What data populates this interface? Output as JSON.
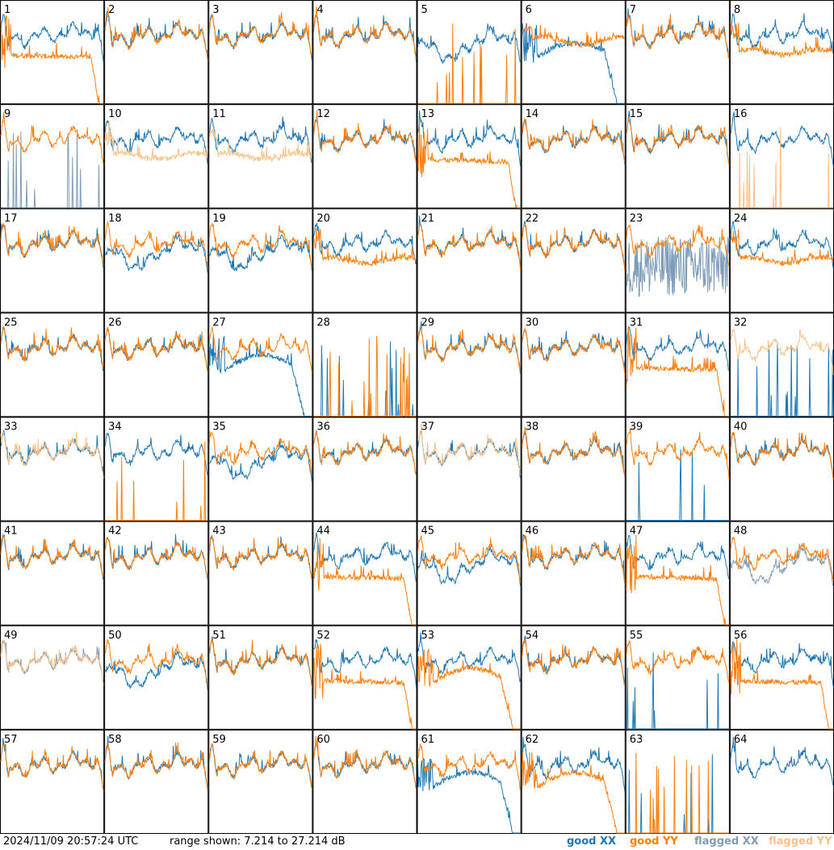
{
  "timestamp": "2024/11/09 20:57:24 UTC",
  "range_text": "range shown: 7.214 to 27.214 dB",
  "legend": {
    "good_xx": "good XX",
    "good_yy": "good YY",
    "flagged_xx": "flagged XX",
    "flagged_yy": "flagged YY"
  },
  "colors": {
    "good_xx": "#1f77b4",
    "good_yy": "#ff7f0e",
    "flagged_xx": "#7f9db9",
    "flagged_yy": "#fdc086"
  },
  "chart_data": {
    "type": "line",
    "grid": "8x8 small multiples",
    "ylim": [
      7.214,
      27.214
    ],
    "y_unit": "dB",
    "panels": [
      {
        "label": "1",
        "xx": "good",
        "yy": "good",
        "xx_shape": "normal",
        "yy_shape": "low_drop"
      },
      {
        "label": "2",
        "xx": "good",
        "yy": "good",
        "xx_shape": "normal",
        "yy_shape": "normal"
      },
      {
        "label": "3",
        "xx": "good",
        "yy": "good",
        "xx_shape": "normal",
        "yy_shape": "normal"
      },
      {
        "label": "4",
        "xx": "good",
        "yy": "good",
        "xx_shape": "normal",
        "yy_shape": "normal"
      },
      {
        "label": "5",
        "xx": "good",
        "yy": "good",
        "xx_shape": "dip",
        "yy_shape": "dead"
      },
      {
        "label": "6",
        "xx": "good",
        "yy": "good",
        "xx_shape": "dip_drop",
        "yy_shape": "high"
      },
      {
        "label": "7",
        "xx": "good",
        "yy": "good",
        "xx_shape": "normal",
        "yy_shape": "normal"
      },
      {
        "label": "8",
        "xx": "good",
        "yy": "good",
        "xx_shape": "normal",
        "yy_shape": "low_flat"
      },
      {
        "label": "9",
        "xx": "flagged",
        "yy": "good",
        "xx_shape": "dead",
        "yy_shape": "normal"
      },
      {
        "label": "10",
        "xx": "good",
        "yy": "flagged",
        "xx_shape": "normal",
        "yy_shape": "low_flat"
      },
      {
        "label": "11",
        "xx": "good",
        "yy": "flagged",
        "xx_shape": "normal",
        "yy_shape": "low_flat"
      },
      {
        "label": "12",
        "xx": "good",
        "yy": "good",
        "xx_shape": "normal",
        "yy_shape": "normal"
      },
      {
        "label": "13",
        "xx": "good",
        "yy": "good",
        "xx_shape": "normal",
        "yy_shape": "low_drop"
      },
      {
        "label": "14",
        "xx": "good",
        "yy": "good",
        "xx_shape": "normal",
        "yy_shape": "normal"
      },
      {
        "label": "15",
        "xx": "good",
        "yy": "good",
        "xx_shape": "normal",
        "yy_shape": "normal"
      },
      {
        "label": "16",
        "xx": "good",
        "yy": "flagged",
        "xx_shape": "normal",
        "yy_shape": "dead"
      },
      {
        "label": "17",
        "xx": "good",
        "yy": "good",
        "xx_shape": "normal",
        "yy_shape": "normal"
      },
      {
        "label": "18",
        "xx": "good",
        "yy": "good",
        "xx_shape": "dip",
        "yy_shape": "normal"
      },
      {
        "label": "19",
        "xx": "good",
        "yy": "good",
        "xx_shape": "dip",
        "yy_shape": "normal"
      },
      {
        "label": "20",
        "xx": "good",
        "yy": "good",
        "xx_shape": "normal",
        "yy_shape": "low_flat"
      },
      {
        "label": "21",
        "xx": "good",
        "yy": "good",
        "xx_shape": "normal",
        "yy_shape": "normal"
      },
      {
        "label": "22",
        "xx": "good",
        "yy": "good",
        "xx_shape": "normal",
        "yy_shape": "normal"
      },
      {
        "label": "23",
        "xx": "flagged",
        "yy": "good",
        "xx_shape": "noisy",
        "yy_shape": "normal"
      },
      {
        "label": "24",
        "xx": "good",
        "yy": "good",
        "xx_shape": "normal",
        "yy_shape": "low_flat"
      },
      {
        "label": "25",
        "xx": "good",
        "yy": "good",
        "xx_shape": "normal",
        "yy_shape": "normal"
      },
      {
        "label": "26",
        "xx": "good",
        "yy": "good",
        "xx_shape": "normal",
        "yy_shape": "normal"
      },
      {
        "label": "27",
        "xx": "good",
        "yy": "good",
        "xx_shape": "dip_drop",
        "yy_shape": "normal"
      },
      {
        "label": "28",
        "xx": "good",
        "yy": "good",
        "xx_shape": "dead",
        "yy_shape": "dead"
      },
      {
        "label": "29",
        "xx": "good",
        "yy": "good",
        "xx_shape": "normal",
        "yy_shape": "normal"
      },
      {
        "label": "30",
        "xx": "good",
        "yy": "good",
        "xx_shape": "normal",
        "yy_shape": "normal"
      },
      {
        "label": "31",
        "xx": "good",
        "yy": "good",
        "xx_shape": "normal",
        "yy_shape": "low_drop"
      },
      {
        "label": "32",
        "xx": "good",
        "yy": "flagged",
        "xx_shape": "dead",
        "yy_shape": "normal"
      },
      {
        "label": "33",
        "xx": "good",
        "yy": "flagged",
        "xx_shape": "normal",
        "yy_shape": "normal"
      },
      {
        "label": "34",
        "xx": "good",
        "yy": "good",
        "xx_shape": "normal",
        "yy_shape": "dead"
      },
      {
        "label": "35",
        "xx": "good",
        "yy": "good",
        "xx_shape": "dip",
        "yy_shape": "normal"
      },
      {
        "label": "36",
        "xx": "good",
        "yy": "good",
        "xx_shape": "normal",
        "yy_shape": "normal"
      },
      {
        "label": "37",
        "xx": "good",
        "yy": "flagged",
        "xx_shape": "normal",
        "yy_shape": "normal"
      },
      {
        "label": "38",
        "xx": "good",
        "yy": "good",
        "xx_shape": "normal",
        "yy_shape": "normal"
      },
      {
        "label": "39",
        "xx": "good",
        "yy": "good",
        "xx_shape": "dead",
        "yy_shape": "normal"
      },
      {
        "label": "40",
        "xx": "good",
        "yy": "good",
        "xx_shape": "normal",
        "yy_shape": "normal"
      },
      {
        "label": "41",
        "xx": "good",
        "yy": "good",
        "xx_shape": "normal",
        "yy_shape": "normal"
      },
      {
        "label": "42",
        "xx": "good",
        "yy": "good",
        "xx_shape": "normal",
        "yy_shape": "normal"
      },
      {
        "label": "43",
        "xx": "good",
        "yy": "good",
        "xx_shape": "normal",
        "yy_shape": "normal"
      },
      {
        "label": "44",
        "xx": "good",
        "yy": "good",
        "xx_shape": "normal",
        "yy_shape": "low_drop"
      },
      {
        "label": "45",
        "xx": "good",
        "yy": "good",
        "xx_shape": "dip",
        "yy_shape": "normal"
      },
      {
        "label": "46",
        "xx": "good",
        "yy": "good",
        "xx_shape": "normal",
        "yy_shape": "normal"
      },
      {
        "label": "47",
        "xx": "good",
        "yy": "good",
        "xx_shape": "normal",
        "yy_shape": "low_drop"
      },
      {
        "label": "48",
        "xx": "flagged",
        "yy": "good",
        "xx_shape": "dip",
        "yy_shape": "normal"
      },
      {
        "label": "49",
        "xx": "flagged",
        "yy": "flagged",
        "xx_shape": "normal",
        "yy_shape": "normal"
      },
      {
        "label": "50",
        "xx": "good",
        "yy": "good",
        "xx_shape": "dip",
        "yy_shape": "normal"
      },
      {
        "label": "51",
        "xx": "good",
        "yy": "good",
        "xx_shape": "normal",
        "yy_shape": "normal"
      },
      {
        "label": "52",
        "xx": "good",
        "yy": "good",
        "xx_shape": "normal",
        "yy_shape": "low_drop"
      },
      {
        "label": "53",
        "xx": "good",
        "yy": "good",
        "xx_shape": "normal",
        "yy_shape": "dip_drop"
      },
      {
        "label": "54",
        "xx": "good",
        "yy": "good",
        "xx_shape": "normal",
        "yy_shape": "normal"
      },
      {
        "label": "55",
        "xx": "good",
        "yy": "good",
        "xx_shape": "dead",
        "yy_shape": "normal"
      },
      {
        "label": "56",
        "xx": "good",
        "yy": "good",
        "xx_shape": "normal",
        "yy_shape": "low_drop"
      },
      {
        "label": "57",
        "xx": "good",
        "yy": "good",
        "xx_shape": "normal",
        "yy_shape": "normal"
      },
      {
        "label": "58",
        "xx": "good",
        "yy": "good",
        "xx_shape": "normal",
        "yy_shape": "normal"
      },
      {
        "label": "59",
        "xx": "good",
        "yy": "good",
        "xx_shape": "normal",
        "yy_shape": "normal"
      },
      {
        "label": "60",
        "xx": "good",
        "yy": "good",
        "xx_shape": "normal",
        "yy_shape": "normal"
      },
      {
        "label": "61",
        "xx": "good",
        "yy": "good",
        "xx_shape": "dip_drop",
        "yy_shape": "normal"
      },
      {
        "label": "62",
        "xx": "good",
        "yy": "good",
        "xx_shape": "normal",
        "yy_shape": "dip_drop"
      },
      {
        "label": "63",
        "xx": "good",
        "yy": "good",
        "xx_shape": "dead",
        "yy_shape": "dead"
      },
      {
        "label": "64",
        "xx": "good",
        "yy": "good",
        "xx_shape": "normal",
        "yy_shape": "none"
      }
    ]
  }
}
